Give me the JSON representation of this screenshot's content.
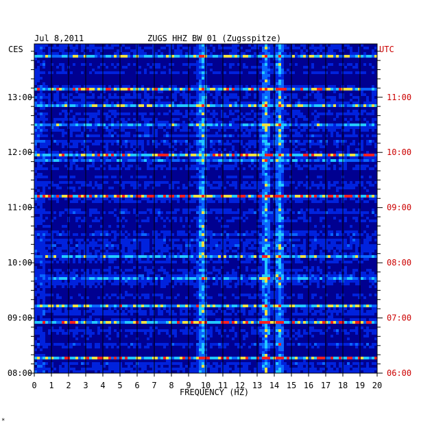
{
  "header": {
    "date": "Jul 8,2011",
    "station": "ZUGS HHZ BW 01 (Zugsspitze)"
  },
  "corner_mark": "*",
  "chart_data": {
    "type": "heatmap",
    "xlabel": "FREQUENCY (HZ)",
    "left_axis_label": "CES",
    "right_axis_label": "UTC",
    "x_ticks": [
      "0",
      "1",
      "2",
      "3",
      "4",
      "5",
      "6",
      "7",
      "8",
      "9",
      "10",
      "11",
      "12",
      "13",
      "14",
      "15",
      "16",
      "17",
      "18",
      "19",
      "20"
    ],
    "xlim": [
      0,
      20
    ],
    "left_ticks": [
      "13:00",
      "12:00",
      "11:00",
      "10:00",
      "09:00",
      "08:00"
    ],
    "right_ticks": [
      "11:00",
      "10:00",
      "09:00",
      "08:00",
      "07:00",
      "06:00"
    ],
    "time_range_ces": [
      "08:00",
      "13:58"
    ],
    "colormap": [
      "#00008b",
      "#0022dd",
      "#0a66ff",
      "#22c8ff",
      "#f0e040",
      "#ff2020"
    ],
    "background_color": "#000090",
    "utc_color": "#cc0000",
    "narrowband_lines_hz": [
      9.8,
      13.5,
      14.3
    ],
    "strong_rows_ces": [
      "13:44",
      "13:09",
      "12:52",
      "12:31",
      "11:57",
      "11:50",
      "11:12",
      "10:08",
      "09:44",
      "09:14",
      "08:56",
      "08:16"
    ]
  }
}
